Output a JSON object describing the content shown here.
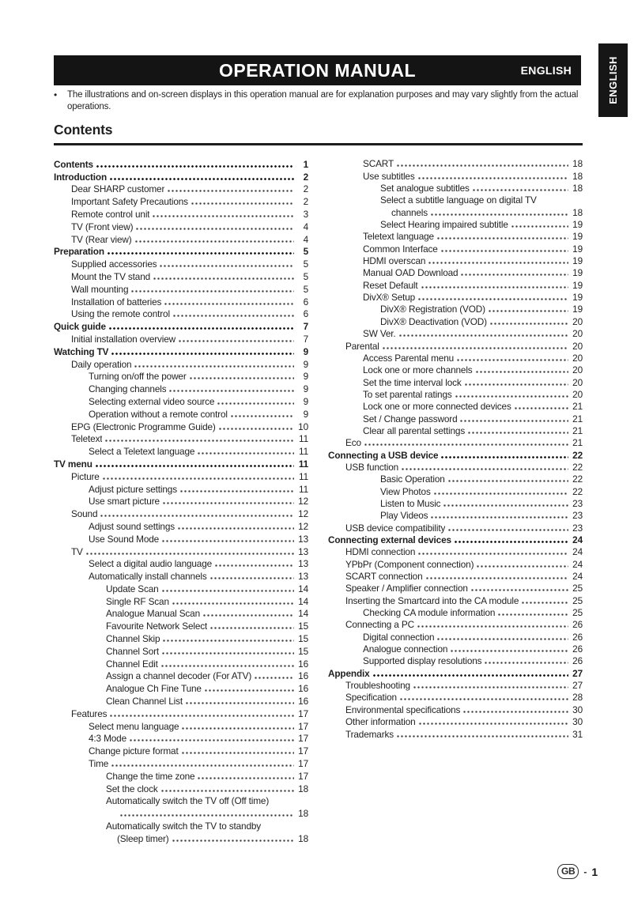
{
  "header": {
    "title": "OPERATION MANUAL",
    "lang_label": "ENGLISH"
  },
  "side_tab": {
    "label": "ENGLISH"
  },
  "note": {
    "bullet": "•",
    "text": "The illustrations and on-screen displays in this operation manual are for explanation purposes and may vary slightly from the actual operations."
  },
  "contents_heading": "Contents",
  "footer": {
    "region": "GB",
    "dash": "-",
    "page": "1"
  },
  "toc": {
    "left": [
      {
        "label": "Contents",
        "page": "1",
        "level": 0,
        "bold": true
      },
      {
        "label": "Introduction",
        "page": "2",
        "level": 0,
        "bold": true
      },
      {
        "label": "Dear SHARP customer",
        "page": "2",
        "level": 1
      },
      {
        "label": "Important Safety Precautions",
        "page": "2",
        "level": 1
      },
      {
        "label": "Remote control unit",
        "page": "3",
        "level": 1
      },
      {
        "label": "TV (Front view)",
        "page": "4",
        "level": 1
      },
      {
        "label": "TV (Rear view)",
        "page": "4",
        "level": 1
      },
      {
        "label": "Preparation",
        "page": "5",
        "level": 0,
        "bold": true
      },
      {
        "label": "Supplied accessories",
        "page": "5",
        "level": 1
      },
      {
        "label": "Mount the TV stand",
        "page": "5",
        "level": 1
      },
      {
        "label": "Wall mounting",
        "page": "5",
        "level": 1
      },
      {
        "label": "Installation of batteries",
        "page": "6",
        "level": 1
      },
      {
        "label": "Using the remote control",
        "page": "6",
        "level": 1
      },
      {
        "label": "Quick guide",
        "page": "7",
        "level": 0,
        "bold": true
      },
      {
        "label": "Initial installation overview",
        "page": "7",
        "level": 1
      },
      {
        "label": "Watching TV",
        "page": "9",
        "level": 0,
        "bold": true
      },
      {
        "label": "Daily operation",
        "page": "9",
        "level": 1
      },
      {
        "label": "Turning on/off the power",
        "page": "9",
        "level": 2
      },
      {
        "label": "Changing channels",
        "page": "9",
        "level": 2
      },
      {
        "label": "Selecting external video source",
        "page": "9",
        "level": 2
      },
      {
        "label": "Operation without a remote control",
        "page": "9",
        "level": 2
      },
      {
        "label": "EPG (Electronic Programme Guide)",
        "page": "10",
        "level": 1
      },
      {
        "label": "Teletext",
        "page": "11",
        "level": 1
      },
      {
        "label": "Select a Teletext language",
        "page": "11",
        "level": 2
      },
      {
        "label": "TV menu",
        "page": "11",
        "level": 0,
        "bold": true
      },
      {
        "label": "Picture",
        "page": "11",
        "level": 1
      },
      {
        "label": "Adjust picture settings",
        "page": "11",
        "level": 2
      },
      {
        "label": "Use smart picture",
        "page": "12",
        "level": 2
      },
      {
        "label": "Sound",
        "page": "12",
        "level": 1
      },
      {
        "label": "Adjust sound settings",
        "page": "12",
        "level": 2
      },
      {
        "label": "Use Sound Mode",
        "page": "13",
        "level": 2
      },
      {
        "label": "TV",
        "page": "13",
        "level": 1
      },
      {
        "label": "Select a digital audio language",
        "page": "13",
        "level": 2
      },
      {
        "label": "Automatically install channels",
        "page": "13",
        "level": 2
      },
      {
        "label": "Update Scan",
        "page": "14",
        "level": 3
      },
      {
        "label": "Single RF Scan",
        "page": "14",
        "level": 3
      },
      {
        "label": "Analogue Manual Scan",
        "page": "14",
        "level": 3
      },
      {
        "label": "Favourite Network Select",
        "page": "15",
        "level": 3
      },
      {
        "label": "Channel Skip",
        "page": "15",
        "level": 3
      },
      {
        "label": "Channel Sort",
        "page": "15",
        "level": 3
      },
      {
        "label": "Channel Edit",
        "page": "16",
        "level": 3
      },
      {
        "label": "Assign a channel decoder (For ATV)",
        "page": "16",
        "level": 3
      },
      {
        "label": "Analogue Ch Fine Tune",
        "page": "16",
        "level": 3
      },
      {
        "label": "Clean Channel List",
        "page": "16",
        "level": 3
      },
      {
        "label": "Features",
        "page": "17",
        "level": 1
      },
      {
        "label": "Select menu language",
        "page": "17",
        "level": 2
      },
      {
        "label": "4:3 Mode",
        "page": "17",
        "level": 2
      },
      {
        "label": "Change picture format",
        "page": "17",
        "level": 2
      },
      {
        "label": "Time",
        "page": "17",
        "level": 2
      },
      {
        "label": "Change the time zone",
        "page": "17",
        "level": 3
      },
      {
        "label": "Set the clock",
        "page": "18",
        "level": 3
      },
      {
        "label": "Automatically switch the TV off (Off time)",
        "page": "",
        "level": 3,
        "leader": false
      },
      {
        "label": "",
        "page": "18",
        "level": 3,
        "cont": true
      },
      {
        "label": "Automatically switch the TV to standby",
        "page": "",
        "level": 3,
        "leader": false
      },
      {
        "label": "(Sleep timer)",
        "page": "18",
        "level": 3,
        "cont": true
      }
    ],
    "right": [
      {
        "label": "SCART",
        "page": "18",
        "level": 2
      },
      {
        "label": "Use subtitles",
        "page": "18",
        "level": 2
      },
      {
        "label": "Set analogue subtitles",
        "page": "18",
        "level": 3
      },
      {
        "label": "Select a subtitle language on digital TV",
        "page": "",
        "level": 3,
        "leader": false
      },
      {
        "label": "channels",
        "page": "18",
        "level": 3,
        "cont": true
      },
      {
        "label": "Select Hearing impaired subtitle",
        "page": "19",
        "level": 3
      },
      {
        "label": "Teletext language",
        "page": "19",
        "level": 2
      },
      {
        "label": "Common Interface",
        "page": "19",
        "level": 2
      },
      {
        "label": "HDMI overscan",
        "page": "19",
        "level": 2
      },
      {
        "label": "Manual OAD Download",
        "page": "19",
        "level": 2
      },
      {
        "label": "Reset Default",
        "page": "19",
        "level": 2
      },
      {
        "label": "DivX® Setup",
        "page": "19",
        "level": 2
      },
      {
        "label": "DivX® Registration (VOD)",
        "page": "19",
        "level": 3
      },
      {
        "label": "DivX® Deactivation (VOD)",
        "page": "20",
        "level": 3
      },
      {
        "label": "SW Ver.",
        "page": "20",
        "level": 2
      },
      {
        "label": "Parental",
        "page": "20",
        "level": 1
      },
      {
        "label": "Access Parental menu",
        "page": "20",
        "level": 2
      },
      {
        "label": "Lock one or more channels",
        "page": "20",
        "level": 2
      },
      {
        "label": "Set the time interval lock",
        "page": "20",
        "level": 2
      },
      {
        "label": "To set parental ratings",
        "page": "20",
        "level": 2
      },
      {
        "label": "Lock one or more connected devices",
        "page": "21",
        "level": 2
      },
      {
        "label": "Set / Change password",
        "page": "21",
        "level": 2
      },
      {
        "label": "Clear all parental settings",
        "page": "21",
        "level": 2
      },
      {
        "label": "Eco",
        "page": "21",
        "level": 1
      },
      {
        "label": "Connecting a USB device",
        "page": "22",
        "level": 0,
        "bold": true
      },
      {
        "label": "USB function",
        "page": "22",
        "level": 1
      },
      {
        "label": "Basic Operation",
        "page": "22",
        "level": 3
      },
      {
        "label": "View Photos",
        "page": "22",
        "level": 3
      },
      {
        "label": "Listen to Music",
        "page": "23",
        "level": 3
      },
      {
        "label": "Play Videos",
        "page": "23",
        "level": 3
      },
      {
        "label": "USB device compatibility",
        "page": "23",
        "level": 1
      },
      {
        "label": "Connecting external devices",
        "page": "24",
        "level": 0,
        "bold": true
      },
      {
        "label": "HDMI connection",
        "page": "24",
        "level": 1
      },
      {
        "label": "YPbPr (Component connection)",
        "page": "24",
        "level": 1
      },
      {
        "label": "SCART connection",
        "page": "24",
        "level": 1
      },
      {
        "label": "Speaker / Amplifier connection",
        "page": "25",
        "level": 1
      },
      {
        "label": "Inserting the Smartcard into the CA module",
        "page": "25",
        "level": 1
      },
      {
        "label": "Checking CA module information",
        "page": "25",
        "level": 2
      },
      {
        "label": "Connecting a PC",
        "page": "26",
        "level": 1
      },
      {
        "label": "Digital connection",
        "page": "26",
        "level": 2
      },
      {
        "label": "Analogue connection",
        "page": "26",
        "level": 2
      },
      {
        "label": "Supported display resolutions",
        "page": "26",
        "level": 2
      },
      {
        "label": "Appendix",
        "page": "27",
        "level": 0,
        "bold": true
      },
      {
        "label": "Troubleshooting",
        "page": "27",
        "level": 1
      },
      {
        "label": "Specification",
        "page": "28",
        "level": 1
      },
      {
        "label": "Environmental specifications",
        "page": "30",
        "level": 1
      },
      {
        "label": "Other information",
        "page": "30",
        "level": 1
      },
      {
        "label": "Trademarks",
        "page": "31",
        "level": 1
      }
    ]
  }
}
